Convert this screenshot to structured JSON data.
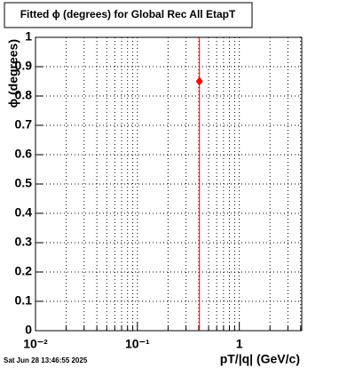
{
  "chart_data": {
    "type": "scatter",
    "title": "Fitted ϕ (degrees) for Global Rec All EtapT",
    "x_label": "pT/|q| (GeV/c)",
    "y_label": "ϕ (degrees)",
    "timestamp": "Sat Jun 28 13:46:55 2025",
    "x_scale": "log",
    "grid": true,
    "series": [
      {
        "name": "EtapT",
        "color": "#ff0000",
        "x": [
          0.406
        ],
        "values": [
          0.85
        ],
        "errors": [
          1
        ]
      }
    ],
    "xlim": [
      0.01,
      4.1
    ],
    "xticks": [
      {
        "value": 0.01,
        "label": "10⁻²"
      },
      {
        "value": 0.1,
        "label": "10⁻¹"
      },
      1
    ],
    "ylim": [
      0,
      1
    ],
    "yticks": [
      0,
      0.1,
      0.2,
      0.3,
      0.4,
      0.5,
      0.6,
      0.7,
      0.8,
      0.9,
      1
    ]
  }
}
